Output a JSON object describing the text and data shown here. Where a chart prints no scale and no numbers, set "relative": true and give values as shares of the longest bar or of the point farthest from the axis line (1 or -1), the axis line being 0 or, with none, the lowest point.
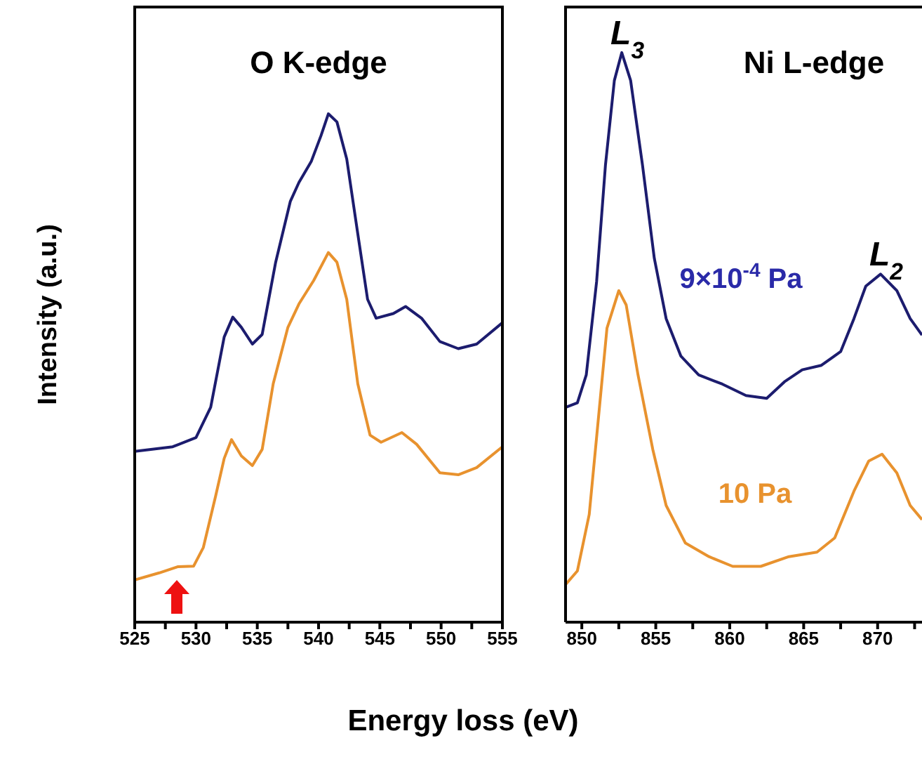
{
  "chart_data": [
    {
      "type": "line",
      "title": "O K-edge",
      "ylabel": "Intensity (a.u.)",
      "relative": true,
      "xlim": [
        525,
        555
      ],
      "xticks": [
        525,
        {
          "value": 527.5,
          "label": null
        },
        530,
        {
          "value": 532.5,
          "label": null
        },
        535,
        {
          "value": 537.5,
          "label": null
        },
        540,
        {
          "value": 542.5,
          "label": null
        },
        545,
        {
          "value": 547.5,
          "label": null
        },
        550,
        {
          "value": 552.5,
          "label": null
        },
        555
      ],
      "series": [
        {
          "color": "#1c1c6e",
          "x": [
            525,
            528.1,
            530,
            531.2,
            532.3,
            533,
            533.7,
            534.6,
            535.4,
            536.5,
            537.7,
            538.4,
            539.4,
            540.2,
            540.8,
            541.5,
            542.3,
            543.2,
            544,
            544.7,
            546.1,
            547.1,
            548.4,
            549.9,
            551.4,
            552.9,
            555
          ],
          "values": [
            0.336,
            0.345,
            0.363,
            0.423,
            0.561,
            0.6,
            0.58,
            0.547,
            0.566,
            0.708,
            0.828,
            0.865,
            0.906,
            0.957,
            1,
            0.984,
            0.911,
            0.764,
            0.635,
            0.598,
            0.607,
            0.621,
            0.598,
            0.552,
            0.538,
            0.547,
            0.589
          ]
        },
        {
          "color": "#e8922e",
          "x": [
            525,
            527,
            528.5,
            529.8,
            530.6,
            531.6,
            532.3,
            532.9,
            533.7,
            534.6,
            535.4,
            536.3,
            537.5,
            538.4,
            539.6,
            540.8,
            541.5,
            542.3,
            543.2,
            544.2,
            545.1,
            546.8,
            548,
            549.9,
            551.4,
            552.9,
            555
          ],
          "values": [
            0.083,
            0.097,
            0.109,
            0.11,
            0.147,
            0.248,
            0.322,
            0.359,
            0.327,
            0.308,
            0.34,
            0.469,
            0.58,
            0.626,
            0.672,
            0.727,
            0.708,
            0.635,
            0.469,
            0.368,
            0.354,
            0.373,
            0.35,
            0.294,
            0.29,
            0.304,
            0.345
          ]
        }
      ]
    },
    {
      "type": "line",
      "title": "Ni L-edge",
      "xlabel": "Energy loss (eV)",
      "relative": true,
      "xlim": [
        848.9,
        873
      ],
      "xticks": [
        850,
        {
          "value": 852.5,
          "label": null
        },
        855,
        {
          "value": 857.5,
          "label": null
        },
        860,
        {
          "value": 862.5,
          "label": null
        },
        865,
        {
          "value": 867.5,
          "label": null
        },
        870,
        {
          "value": 872.5,
          "label": null
        }
      ],
      "annotations": [
        {
          "text": "L$_{3}$",
          "x": 852.7,
          "y": 1
        },
        {
          "text": "L$_{2}$",
          "x": 870.2,
          "y": 0.611
        }
      ],
      "series": [
        {
          "name": "9×10$^{-4}$ Pa",
          "color": "#1c1c6e",
          "x": [
            848.9,
            849.7,
            850.3,
            851,
            851.6,
            852.2,
            852.7,
            853.3,
            854.1,
            854.9,
            855.7,
            856.7,
            857.9,
            859.5,
            861.1,
            862.5,
            863.7,
            864.9,
            866.2,
            867.5,
            868.4,
            869.2,
            870.2,
            871.3,
            872.2,
            873
          ],
          "values": [
            0.377,
            0.385,
            0.434,
            0.598,
            0.803,
            0.951,
            1,
            0.951,
            0.803,
            0.639,
            0.533,
            0.467,
            0.434,
            0.418,
            0.398,
            0.393,
            0.422,
            0.443,
            0.451,
            0.475,
            0.533,
            0.59,
            0.611,
            0.582,
            0.533,
            0.504
          ]
        },
        {
          "name": "10 Pa",
          "color": "#e8922e",
          "x": [
            848.9,
            849.7,
            850.5,
            851.1,
            851.7,
            852.5,
            853,
            853.8,
            854.8,
            855.7,
            857,
            858.6,
            860.2,
            862.1,
            864,
            865.9,
            867.1,
            868.4,
            869.4,
            870.3,
            871.3,
            872.2,
            873
          ],
          "values": [
            0.066,
            0.09,
            0.189,
            0.352,
            0.516,
            0.582,
            0.557,
            0.434,
            0.303,
            0.205,
            0.139,
            0.115,
            0.098,
            0.098,
            0.115,
            0.123,
            0.148,
            0.23,
            0.283,
            0.295,
            0.262,
            0.205,
            0.18
          ]
        }
      ]
    }
  ]
}
